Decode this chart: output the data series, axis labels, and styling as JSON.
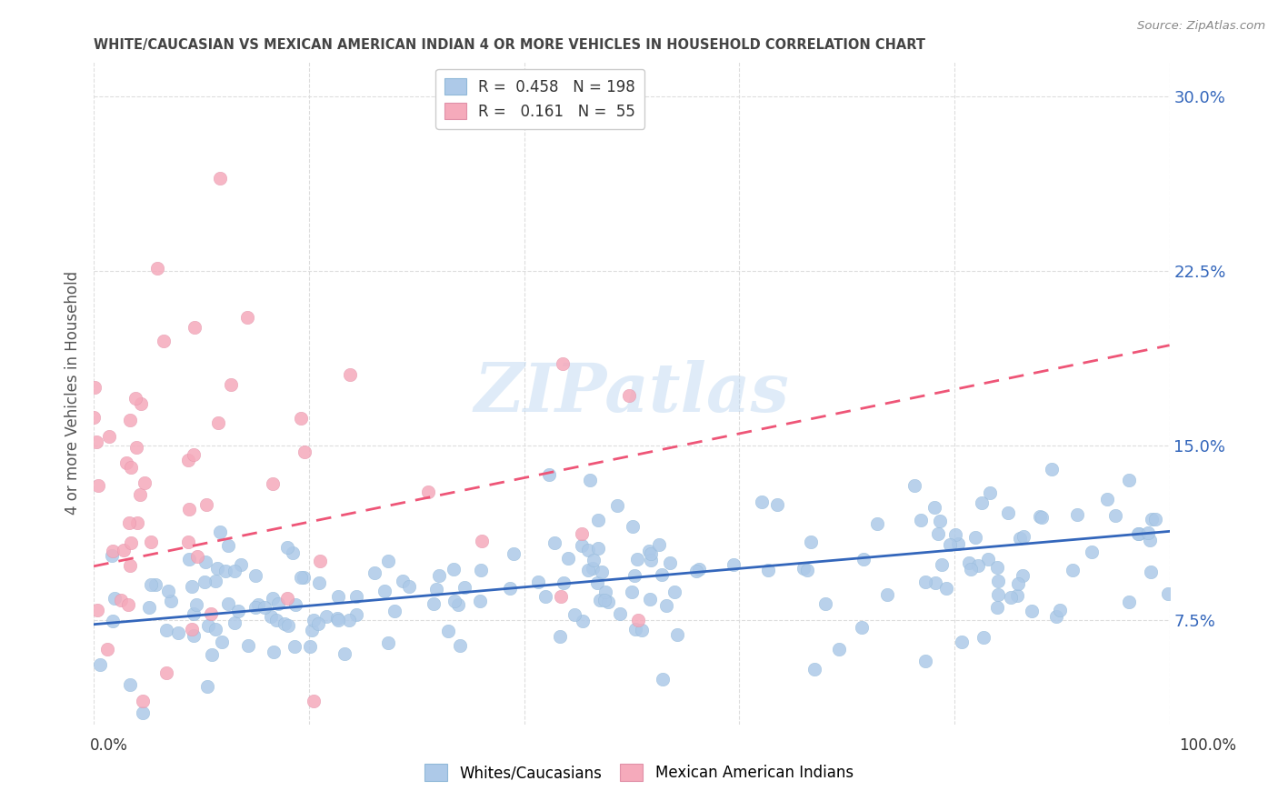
{
  "title": "WHITE/CAUCASIAN VS MEXICAN AMERICAN INDIAN 4 OR MORE VEHICLES IN HOUSEHOLD CORRELATION CHART",
  "source": "Source: ZipAtlas.com",
  "ylabel": "4 or more Vehicles in Household",
  "yticks": [
    0.075,
    0.15,
    0.225,
    0.3
  ],
  "ytick_labels": [
    "7.5%",
    "15.0%",
    "22.5%",
    "30.0%"
  ],
  "xlim": [
    0.0,
    1.0
  ],
  "ylim": [
    0.03,
    0.315
  ],
  "blue_R": 0.458,
  "blue_N": 198,
  "pink_R": 0.161,
  "pink_N": 55,
  "blue_color": "#adc9e8",
  "pink_color": "#f5aabb",
  "blue_line_color": "#3366bb",
  "pink_line_color": "#ee5577",
  "watermark": "ZIPatlas",
  "blue_intercept": 0.073,
  "blue_slope": 0.04,
  "pink_intercept": 0.098,
  "pink_slope": 0.095,
  "grid_color": "#dddddd",
  "legend_box_color": "#cccccc",
  "title_color": "#444444",
  "source_color": "#888888",
  "ytick_color": "#3366bb"
}
